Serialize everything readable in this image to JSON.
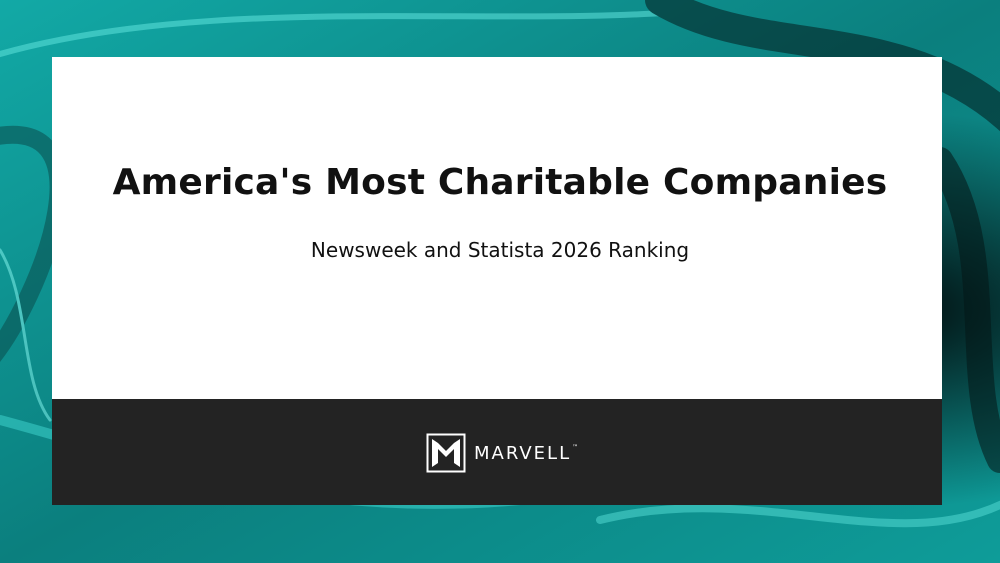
{
  "title": "America's Most Charitable Companies",
  "subtitle": "Newsweek and Statista 2026 Ranking",
  "logo": {
    "text": "MARVELL",
    "mark": "™"
  }
}
